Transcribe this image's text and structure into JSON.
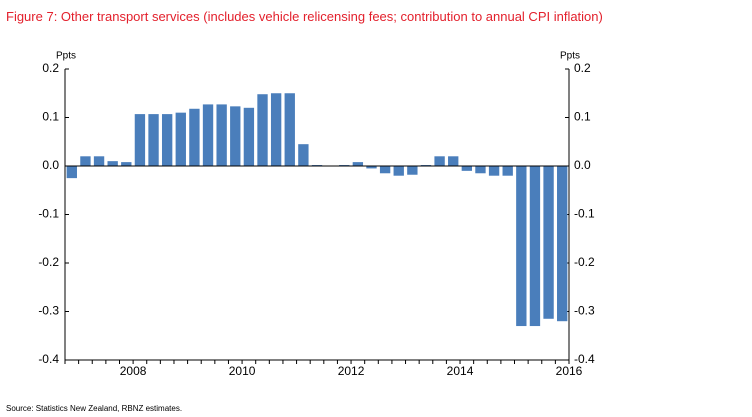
{
  "chart_data": {
    "type": "bar",
    "title": "Figure 7: Other transport services (includes vehicle relicensing fees; contribution to annual CPI inflation)",
    "y_unit": "Ppts",
    "source": "Source: Statistics New Zealand, RBNZ estimates.",
    "categories": [
      null,
      null,
      null,
      null,
      "2008",
      null,
      null,
      null,
      null,
      null,
      null,
      null,
      "2010",
      null,
      null,
      null,
      null,
      null,
      null,
      null,
      "2012",
      null,
      null,
      null,
      null,
      null,
      null,
      null,
      "2014",
      null,
      null,
      null,
      null,
      null,
      null,
      null,
      "2016"
    ],
    "values": [
      -0.025,
      0.02,
      0.02,
      0.01,
      0.008,
      0.107,
      0.107,
      0.107,
      0.11,
      0.118,
      0.127,
      0.127,
      0.123,
      0.12,
      0.148,
      0.15,
      0.15,
      0.045,
      0.002,
      0.0,
      0.002,
      0.008,
      -0.005,
      -0.015,
      -0.02,
      -0.018,
      0.002,
      0.02,
      0.02,
      -0.01,
      -0.015,
      -0.02,
      -0.02,
      -0.33,
      -0.33,
      -0.315,
      -0.32
    ],
    "color": "#4a7ebb",
    "ylim": [
      -0.4,
      0.2
    ],
    "yticks": [
      0.2,
      0.1,
      {
        "value": 0,
        "label": "0.0"
      },
      -0.1,
      -0.2,
      -0.3,
      -0.4
    ],
    "grid": false
  }
}
